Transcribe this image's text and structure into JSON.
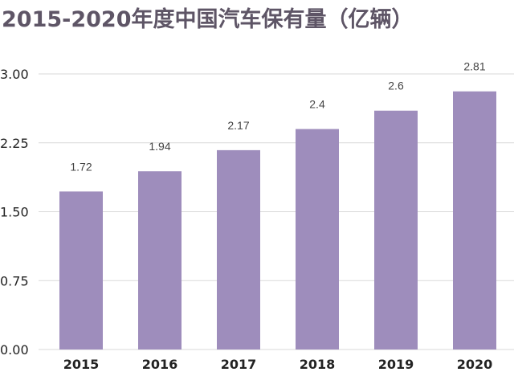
{
  "chart_data": {
    "type": "bar",
    "title": "2015-2020年度中国汽车保有量（亿辆）",
    "xlabel": "",
    "ylabel": "",
    "categories": [
      "2015",
      "2016",
      "2017",
      "2018",
      "2019",
      "2020"
    ],
    "values": [
      1.72,
      1.94,
      2.17,
      2.4,
      2.6,
      2.81
    ],
    "value_labels": [
      "1.72",
      "1.94",
      "2.17",
      "2.4",
      "2.6",
      "2.81"
    ],
    "ylim": [
      0,
      3
    ],
    "yticks": [
      0,
      0.75,
      1.5,
      2.25,
      3
    ],
    "ytick_labels": [
      "0.00",
      "0.75",
      "1.50",
      "2.25",
      "3.00"
    ],
    "grid": true,
    "legend": "none",
    "colors": {
      "bar": "#9e8dbc",
      "grid": "#d9d9d9",
      "title": "#5e5566"
    }
  }
}
